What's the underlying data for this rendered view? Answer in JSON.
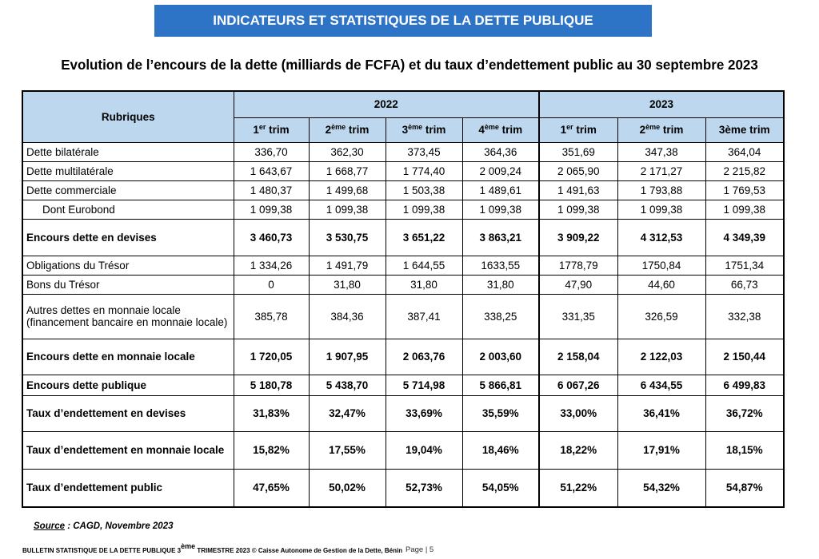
{
  "banner": "INDICATEURS ET STATISTIQUES DE LA DETTE PUBLIQUE",
  "title": "Evolution de l’encours de la dette (milliards de FCFA) et du taux d’endettement public au 30 septembre 2023",
  "table": {
    "rubriques_header": "Rubriques",
    "year_2022": "2022",
    "year_2023": "2023",
    "quarters": [
      {
        "num": "1",
        "sup": "er",
        "suffix": " trim"
      },
      {
        "num": "2",
        "sup": "ème",
        "suffix": " trim"
      },
      {
        "num": "3",
        "sup": "ème",
        "suffix": " trim"
      },
      {
        "num": "4",
        "sup": "ème",
        "suffix": " trim"
      },
      {
        "num": "1",
        "sup": "er",
        "suffix": " trim"
      },
      {
        "num": "2",
        "sup": "ème",
        "suffix": " trim"
      },
      {
        "num": "3ème trim",
        "sup": "",
        "suffix": ""
      }
    ],
    "rows": [
      {
        "label": "Dette bilatérale",
        "values": [
          "336,70",
          "362,30",
          "373,45",
          "364,36",
          "351,69",
          "347,38",
          "364,04"
        ]
      },
      {
        "label": "Dette multilatérale",
        "values": [
          "1 643,67",
          "1 668,77",
          "1 774,40",
          "2 009,24",
          "2 065,90",
          "2 171,27",
          "2 215,82"
        ]
      },
      {
        "label": "Dette commerciale",
        "values": [
          "1 480,37",
          "1 499,68",
          "1 503,38",
          "1 489,61",
          "1 491,63",
          "1 793,88",
          "1 769,53"
        ]
      },
      {
        "label": "Dont Eurobond",
        "values": [
          "1 099,38",
          "1 099,38",
          "1 099,38",
          "1 099,38",
          "1 099,38",
          "1 099,38",
          "1 099,38"
        ]
      },
      {
        "label": "Encours dette en devises",
        "values": [
          "3 460,73",
          "3 530,75",
          "3 651,22",
          "3 863,21",
          "3 909,22",
          "4 312,53",
          "4 349,39"
        ]
      },
      {
        "label": "Obligations du Trésor",
        "values": [
          "1 334,26",
          "1 491,79",
          "1 644,55",
          "1633,55",
          "1778,79",
          "1750,84",
          "1751,34"
        ]
      },
      {
        "label": "Bons du Trésor",
        "values": [
          "0",
          "31,80",
          "31,80",
          "31,80",
          "47,90",
          "44,60",
          "66,73"
        ]
      },
      {
        "label": "Autres dettes en monnaie locale (financement bancaire en monnaie locale)",
        "values": [
          "385,78",
          "384,36",
          "387,41",
          "338,25",
          "331,35",
          "326,59",
          "332,38"
        ]
      },
      {
        "label": "Encours dette en monnaie locale",
        "values": [
          "1 720,05",
          "1 907,95",
          "2 063,76",
          "2 003,60",
          "2 158,04",
          "2 122,03",
          "2 150,44"
        ]
      },
      {
        "label": "Encours dette publique",
        "values": [
          "5 180,78",
          "5 438,70",
          "5 714,98",
          "5 866,81",
          "6 067,26",
          "6 434,55",
          "6 499,83"
        ]
      },
      {
        "label": "Taux d’endettement en devises",
        "values": [
          "31,83%",
          "32,47%",
          "33,69%",
          "35,59%",
          "33,00%",
          "36,41%",
          "36,72%"
        ]
      },
      {
        "label": "Taux d’endettement en monnaie locale",
        "values": [
          "15,82%",
          "17,55%",
          "19,04%",
          "18,46%",
          "18,22%",
          "17,91%",
          "18,15%"
        ]
      },
      {
        "label": "Taux d’endettement public",
        "values": [
          "47,65%",
          "50,02%",
          "52,73%",
          "54,05%",
          "51,22%",
          "54,32%",
          "54,87%"
        ]
      }
    ]
  },
  "source": {
    "label": "Source",
    "text": " : CAGD, Novembre 2023"
  },
  "footer": {
    "pre": "BULLETIN STATISTIQUE DE LA DETTE PUBLIQUE 3",
    "sup": "ème",
    "post": " TRIMESTRE 2023 © Caisse Autonome de Gestion de la Dette, Bénin"
  },
  "page": "Page | 5"
}
